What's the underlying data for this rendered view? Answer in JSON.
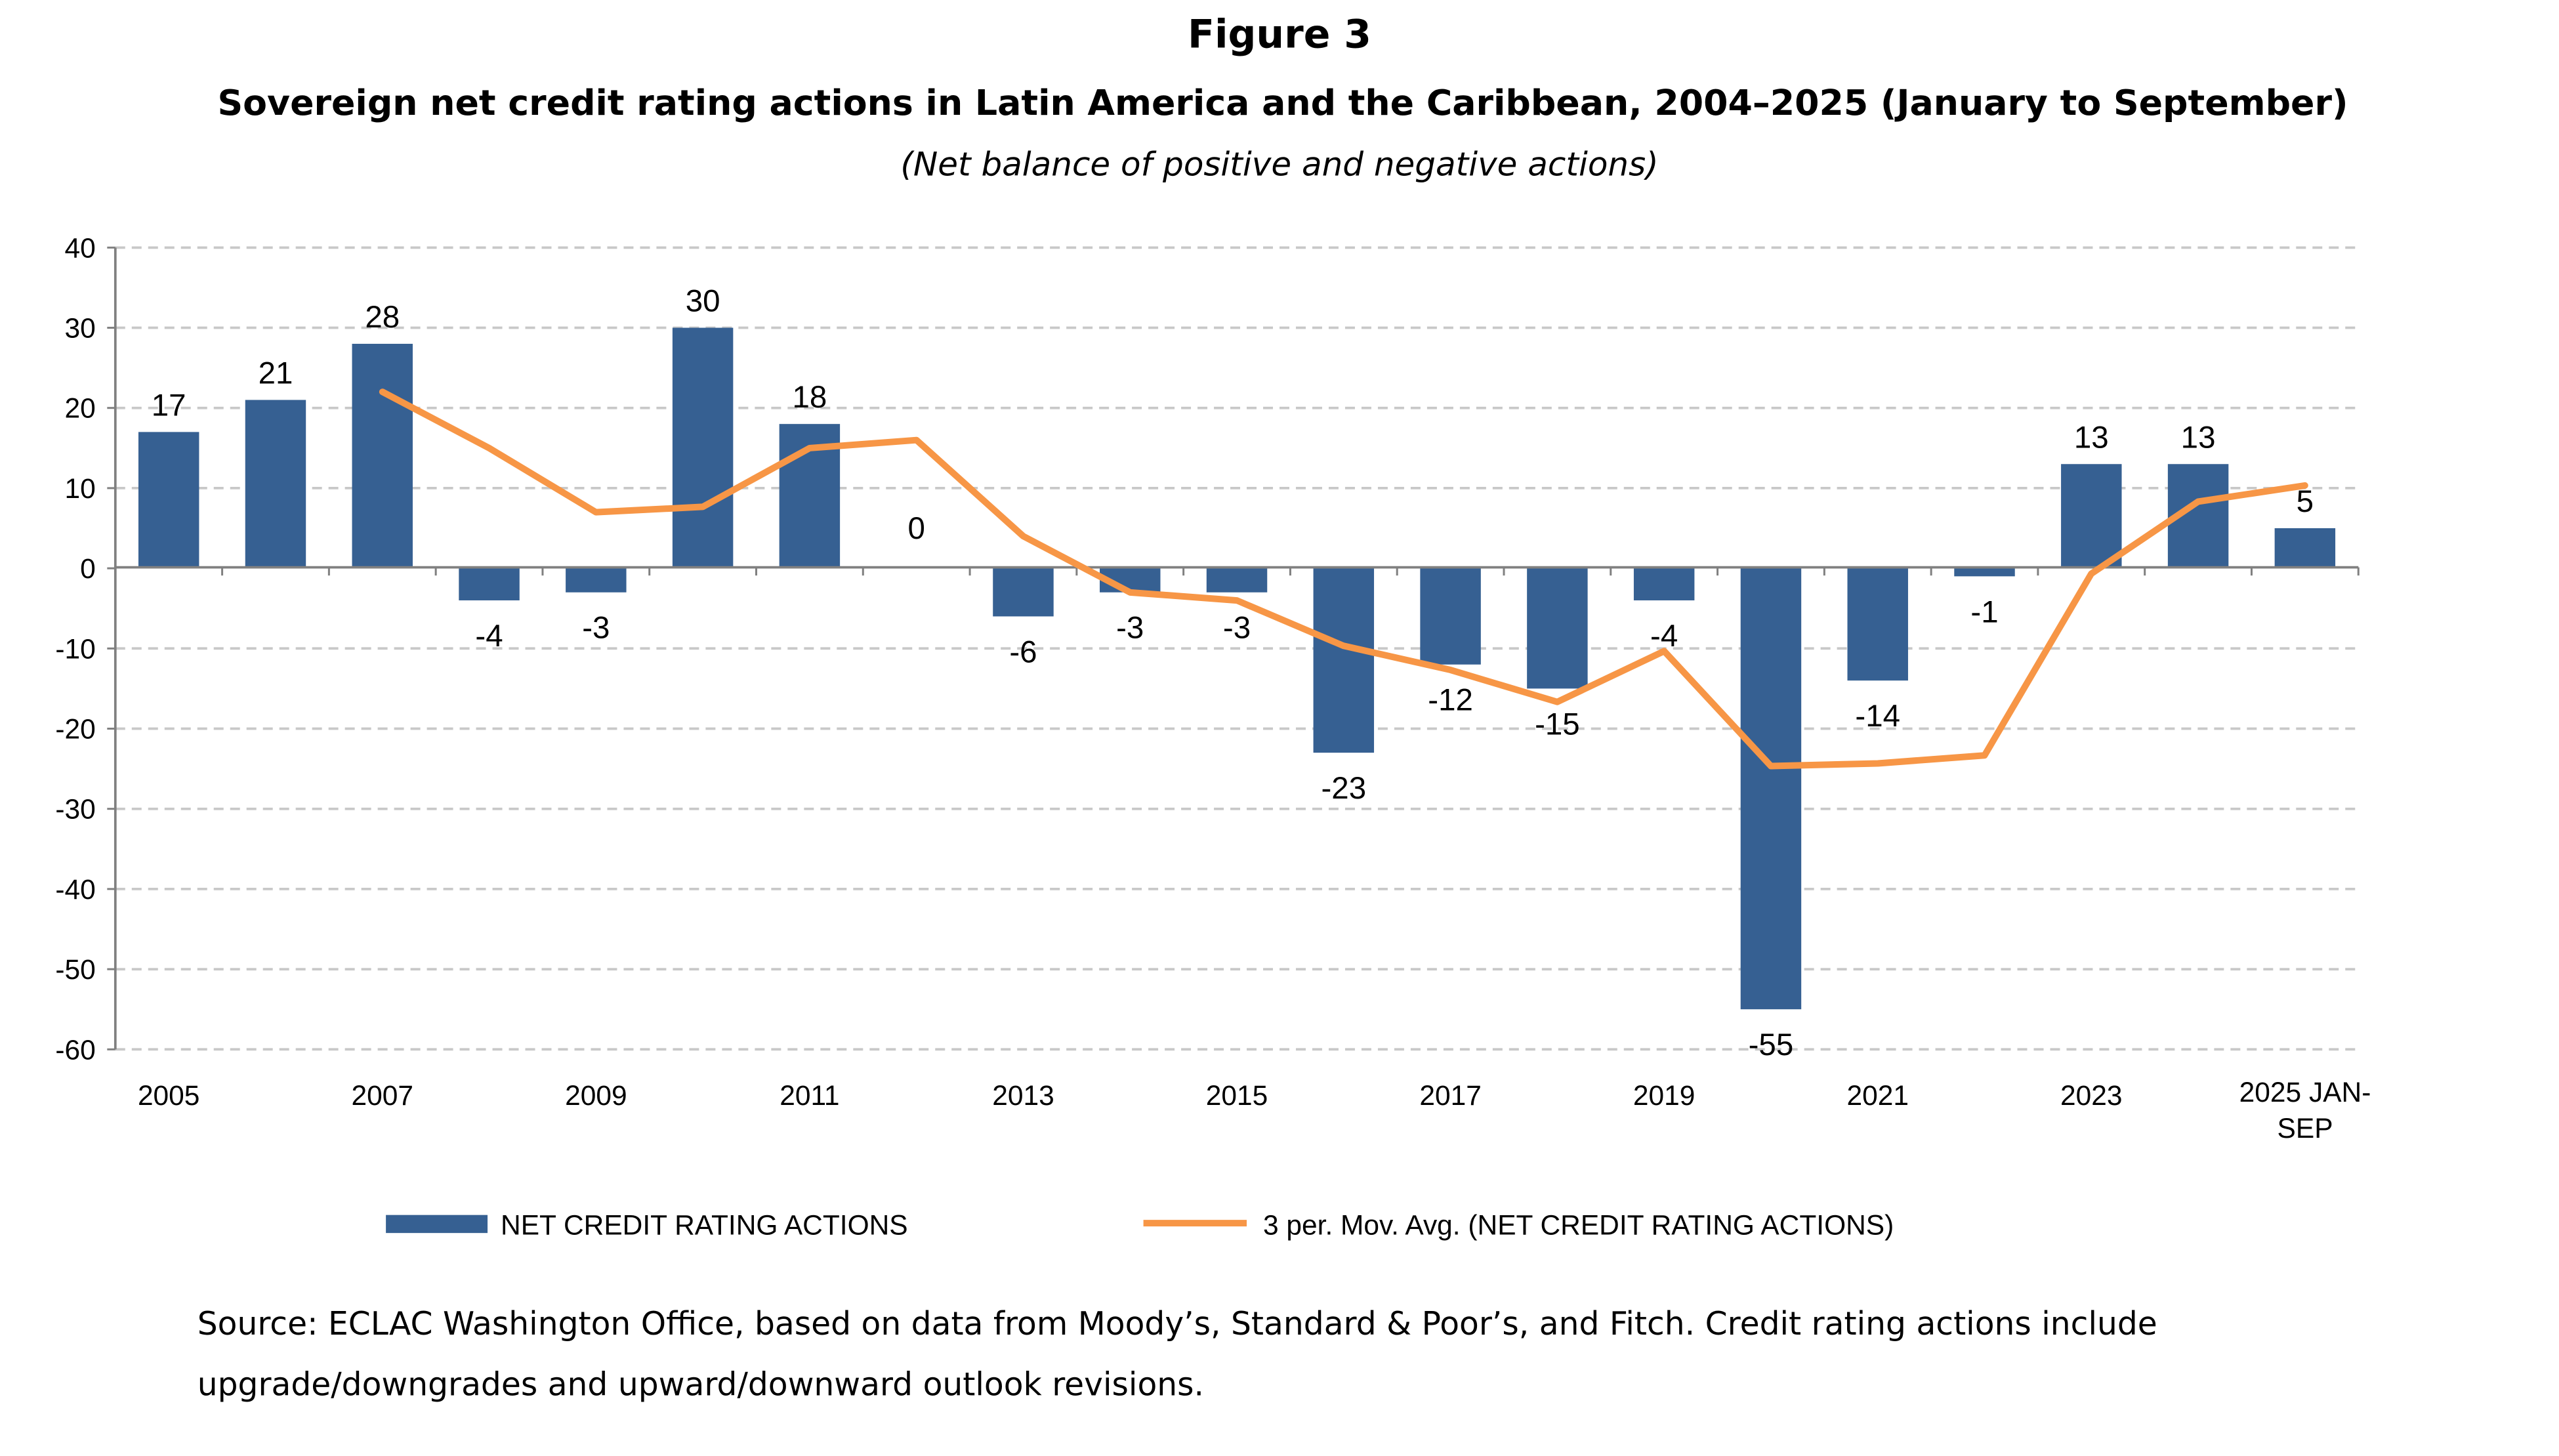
{
  "figure_label": "Figure 3",
  "title": "Sovereign net credit rating actions in Latin America and the Caribbean, 2004–2025 (January to September)",
  "subtitle": "(Net balance of positive and negative actions)",
  "source_line1": "Source:  ECLAC Washington Office, based on data from Moody’s, Standard & Poor’s, and Fitch. Credit rating actions include",
  "source_line2": "upgrade/downgrades and upward/downward outlook revisions.",
  "chart_data": {
    "type": "bar",
    "categories": [
      "2005",
      "2006",
      "2007",
      "2008",
      "2009",
      "2010",
      "2011",
      "2012",
      "2013",
      "2014",
      "2015",
      "2016",
      "2017",
      "2018",
      "2019",
      "2020",
      "2021",
      "2022",
      "2023",
      "2024",
      "2025 JAN-SEP"
    ],
    "x_tick_labels": [
      "2005",
      "",
      "2007",
      "",
      "2009",
      "",
      "2011",
      "",
      "2013",
      "",
      "2015",
      "",
      "2017",
      "",
      "2019",
      "",
      "2021",
      "",
      "2023",
      "",
      "2025 JAN-SEP"
    ],
    "ylim": [
      -60,
      40
    ],
    "yticks": [
      40,
      30,
      20,
      10,
      0,
      -10,
      -20,
      -30,
      -40,
      -50,
      -60
    ],
    "grid": true,
    "legend_position": "bottom",
    "series": [
      {
        "name": "NET CREDIT RATING ACTIONS",
        "type": "bar",
        "color": "#366092",
        "values": [
          17,
          21,
          28,
          -4,
          -3,
          30,
          18,
          0,
          -6,
          -3,
          -3,
          -23,
          -12,
          -15,
          -4,
          -55,
          -14,
          -1,
          13,
          13,
          5
        ]
      },
      {
        "name": "3 per. Mov. Avg. (NET CREDIT RATING ACTIONS)",
        "type": "line",
        "color": "#F79646",
        "values": [
          null,
          null,
          22,
          15,
          7,
          7.67,
          15,
          16,
          4,
          -3,
          -4,
          -9.67,
          -12.67,
          -16.67,
          -10.33,
          -24.67,
          -24.33,
          -23.33,
          -0.67,
          8.33,
          10.33
        ]
      }
    ]
  }
}
